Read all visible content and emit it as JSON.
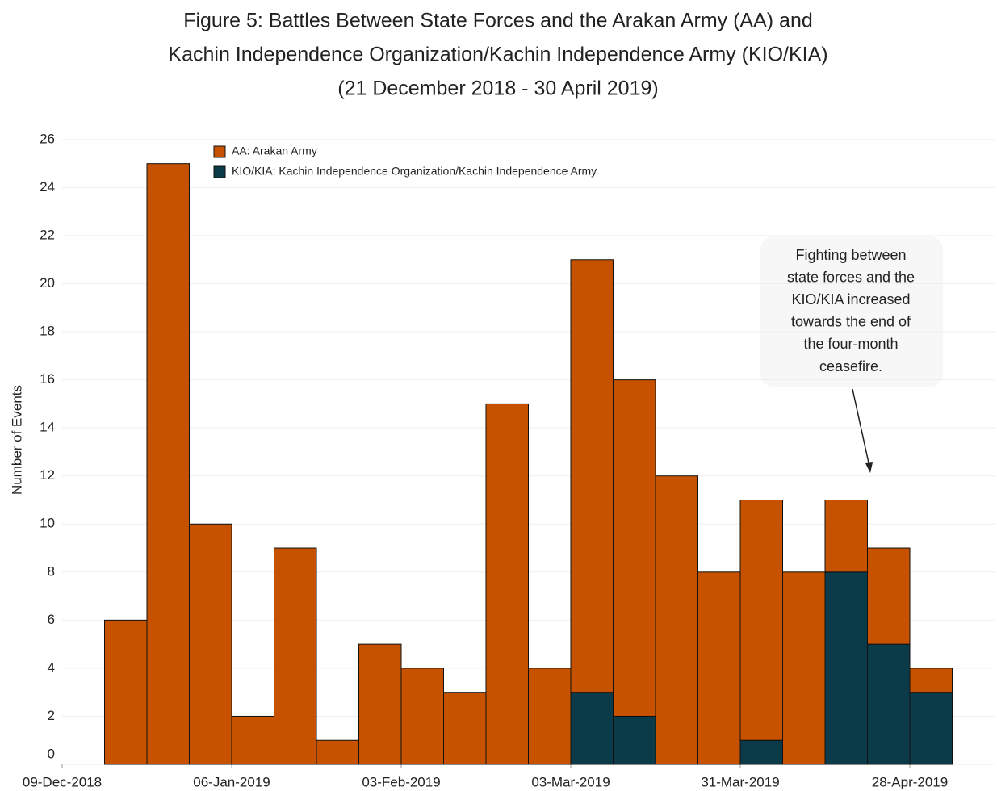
{
  "chart_data": {
    "type": "bar",
    "stacked": true,
    "title": [
      "Figure 5: Battles Between State Forces and the Arakan Army (AA) and",
      "Kachin Independence Organization/Kachin Independence Army (KIO/KIA)",
      "(21 December 2018 - 30 April 2019)"
    ],
    "y_label": "Number of Events",
    "x": [
      "2018-12-16",
      "2018-12-23",
      "2018-12-30",
      "2019-01-06",
      "2019-01-13",
      "2019-01-20",
      "2019-01-27",
      "2019-02-03",
      "2019-02-10",
      "2019-02-17",
      "2019-02-24",
      "2019-03-03",
      "2019-03-10",
      "2019-03-17",
      "2019-03-24",
      "2019-03-31",
      "2019-04-07",
      "2019-04-14",
      "2019-04-21",
      "2019-04-28"
    ],
    "series": [
      {
        "name": "KIO/KIA: Kachin Independence Organization/Kachin Independence Army",
        "color": "#0b3a48",
        "values": [
          0,
          0,
          0,
          0,
          0,
          0,
          0,
          0,
          0,
          0,
          0,
          3,
          2,
          0,
          0,
          1,
          0,
          8,
          5,
          3
        ]
      },
      {
        "name": "AA: Arakan Army",
        "color": "#c65200",
        "values": [
          6,
          25,
          10,
          2,
          9,
          1,
          5,
          4,
          3,
          15,
          4,
          18,
          14,
          12,
          8,
          10,
          8,
          3,
          4,
          1
        ]
      }
    ],
    "legend_order": [
      1,
      0
    ],
    "xlim": [
      "2018-12-09",
      "2019-05-12"
    ],
    "xticks": [
      {
        "value": "2018-12-09",
        "label": "09-Dec-2018"
      },
      {
        "value": "2019-01-06",
        "label": "06-Jan-2019"
      },
      {
        "value": "2019-02-03",
        "label": "03-Feb-2019"
      },
      {
        "value": "2019-03-03",
        "label": "03-Mar-2019"
      },
      {
        "value": "2019-03-31",
        "label": "31-Mar-2019"
      },
      {
        "value": "2019-04-28",
        "label": "28-Apr-2019"
      }
    ],
    "ylim": [
      0,
      26.5
    ],
    "yticks": [
      0,
      2,
      4,
      6,
      8,
      10,
      12,
      14,
      16,
      18,
      20,
      22,
      24,
      26
    ],
    "grid": true,
    "annotation": [
      "Fighting between",
      "state forces and the",
      "KIO/KIA increased",
      "towards the end of",
      "the four-month",
      "ceasefire."
    ]
  }
}
